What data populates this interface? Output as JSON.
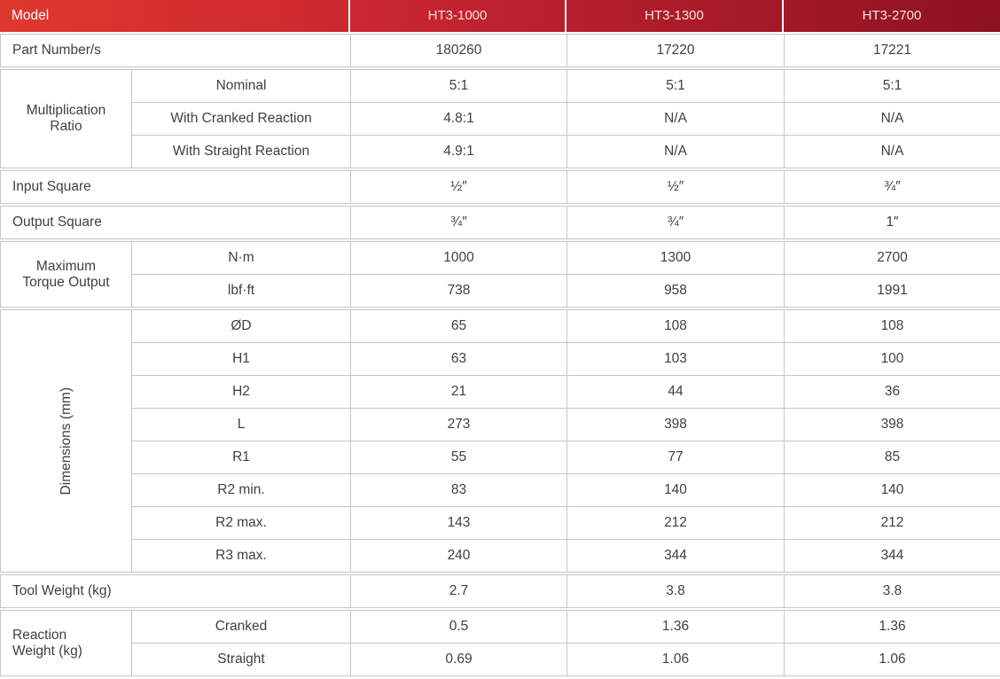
{
  "colors": {
    "header_grad_1": "#df382d",
    "header_grad_2": "#c92631",
    "header_grad_3": "#8d1122",
    "header_text": "#f5e2e0",
    "model_text": "#ffffff",
    "border": "#c6c6c6",
    "text": "#3f3f3f"
  },
  "table": {
    "header": {
      "model_label": "Model",
      "columns": [
        "HT3-1000",
        "HT3-1300",
        "HT3-2700"
      ]
    },
    "part_number": {
      "label": "Part Number/s",
      "values": [
        "180260",
        "17220",
        "17221"
      ]
    },
    "multiplication_ratio": {
      "label": "Multiplication Ratio",
      "rows": [
        {
          "label": "Nominal",
          "values": [
            "5:1",
            "5:1",
            "5:1"
          ]
        },
        {
          "label": "With Cranked Reaction",
          "values": [
            "4.8:1",
            "N/A",
            "N/A"
          ]
        },
        {
          "label": "With Straight Reaction",
          "values": [
            "4.9:1",
            "N/A",
            "N/A"
          ]
        }
      ]
    },
    "input_square": {
      "label": "Input Square",
      "values": [
        "½″",
        "½″",
        "¾″"
      ]
    },
    "output_square": {
      "label": "Output Square",
      "values": [
        "¾″",
        "¾″",
        "1″"
      ]
    },
    "max_torque": {
      "label": "Maximum Torque Output",
      "rows": [
        {
          "label": "N·m",
          "values": [
            "1000",
            "1300",
            "2700"
          ]
        },
        {
          "label": "lbf·ft",
          "values": [
            "738",
            "958",
            "1991"
          ]
        }
      ]
    },
    "dimensions": {
      "label": "Dimensions (mm)",
      "rows": [
        {
          "label": "ØD",
          "values": [
            "65",
            "108",
            "108"
          ]
        },
        {
          "label": "H1",
          "values": [
            "63",
            "103",
            "100"
          ]
        },
        {
          "label": "H2",
          "values": [
            "21",
            "44",
            "36"
          ]
        },
        {
          "label": "L",
          "values": [
            "273",
            "398",
            "398"
          ]
        },
        {
          "label": "R1",
          "values": [
            "55",
            "77",
            "85"
          ]
        },
        {
          "label": "R2 min.",
          "values": [
            "83",
            "140",
            "140"
          ]
        },
        {
          "label": "R2 max.",
          "values": [
            "143",
            "212",
            "212"
          ]
        },
        {
          "label": "R3 max.",
          "values": [
            "240",
            "344",
            "344"
          ]
        }
      ]
    },
    "tool_weight": {
      "label": "Tool Weight (kg)",
      "values": [
        "2.7",
        "3.8",
        "3.8"
      ]
    },
    "reaction_weight": {
      "label": "Reaction Weight (kg)",
      "rows": [
        {
          "label": "Cranked",
          "values": [
            "0.5",
            "1.36",
            "1.36"
          ]
        },
        {
          "label": "Straight",
          "values": [
            "0.69",
            "1.06",
            "1.06"
          ]
        }
      ]
    }
  }
}
